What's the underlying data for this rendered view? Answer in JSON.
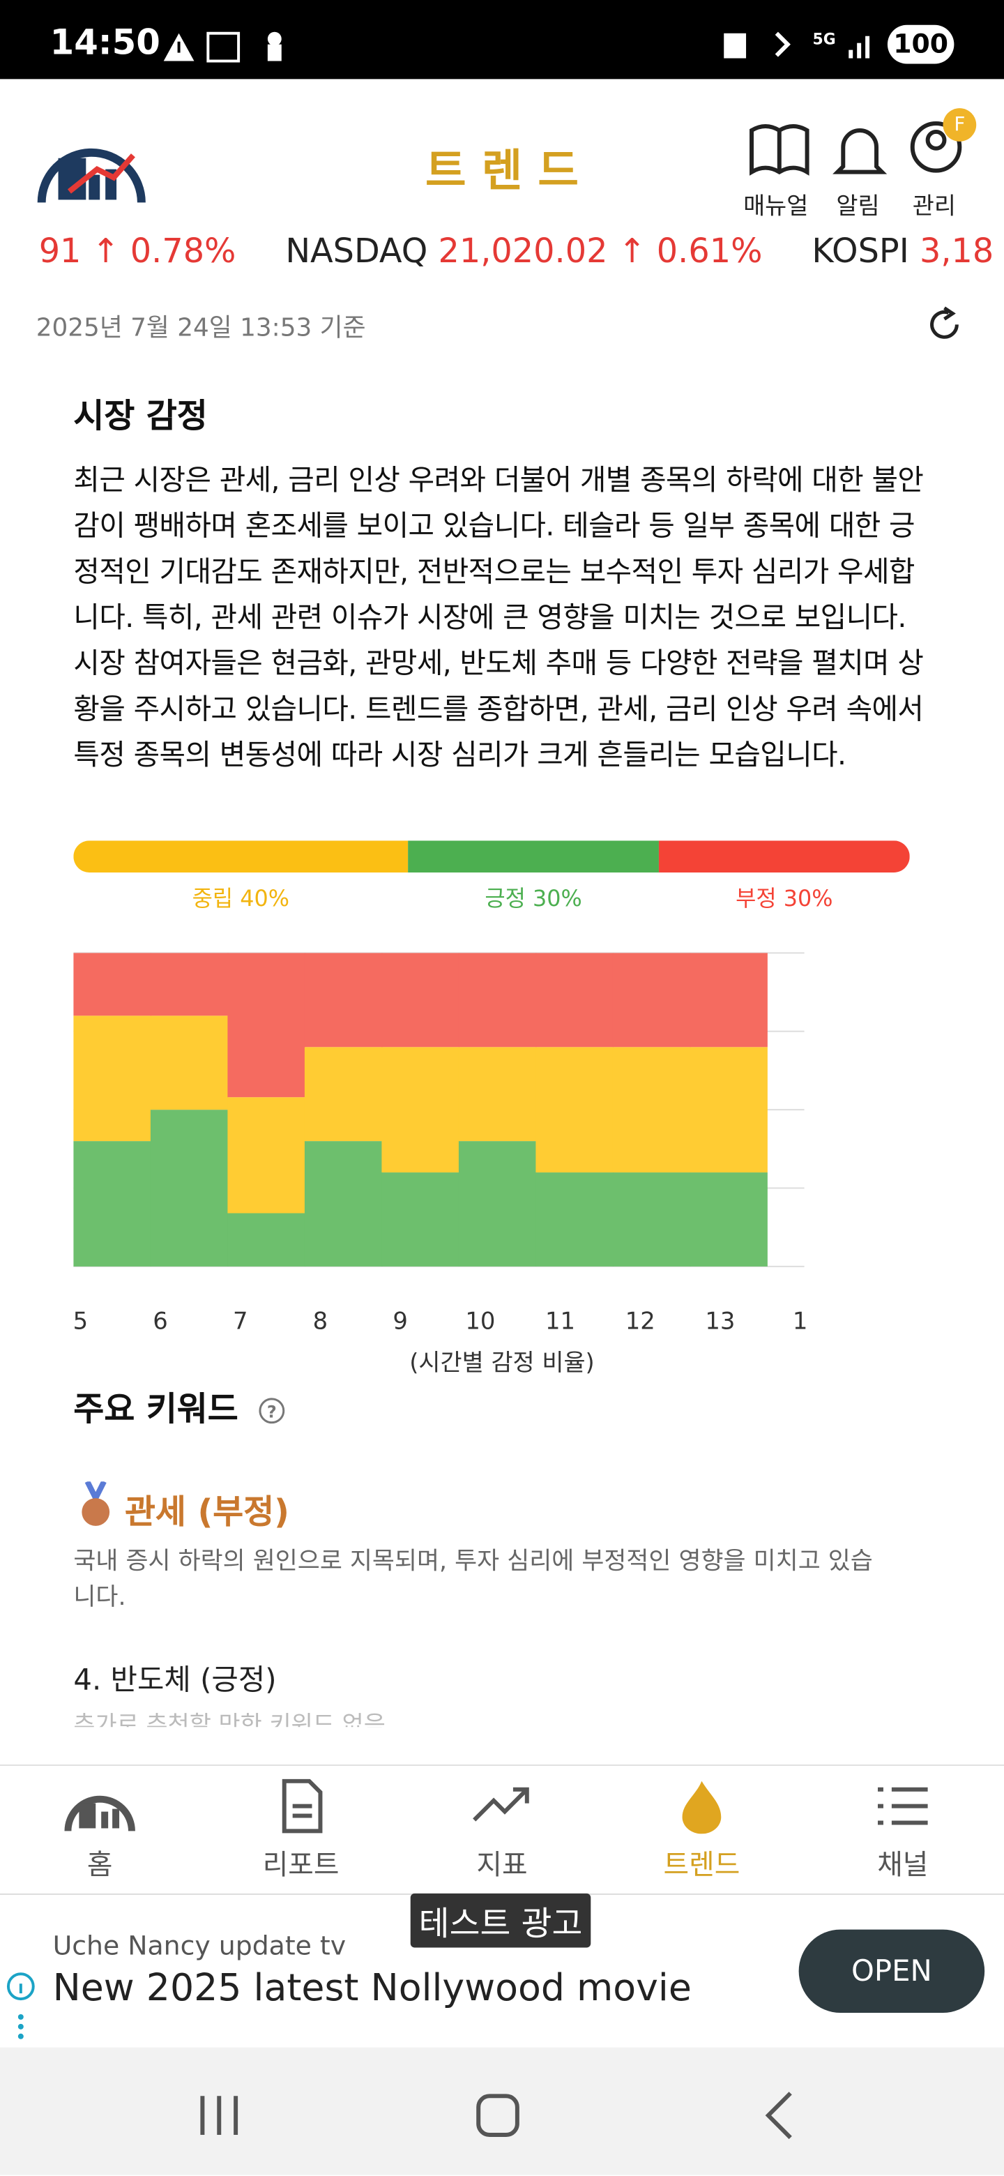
{
  "status_bar": {
    "time": "14:50",
    "battery": "100"
  },
  "header": {
    "title": "트 렌 드",
    "actions": [
      "매뉴얼",
      "알림",
      "관리"
    ],
    "avatar": "F"
  },
  "ticker": [
    "91 ↑ 0.78%",
    "NASDAQ",
    "21,020.02 ↑ 0.61%",
    "KOSPI",
    "3,18"
  ],
  "timestamp": "2025년 7월 24일 13:53 기준",
  "sentiment": {
    "title": "시장 감정",
    "summary": "최근 시장은 관세, 금리 인상 우려와 더불어 개별 종목의 하락에 대한 불안감이 팽배하며 혼조세를 보이고 있습니다. 테슬라 등 일부 종목에 대한 긍정적인 기대감도 존재하지만, 전반적으로는 보수적인 투자 심리가 우세합니다. 특히, 관세 관련 이슈가 시장에 큰 영향을 미치는 것으로 보입니다. 시장 참여자들은 현금화, 관망세, 반도체 추매 등 다양한 전략을 펼치며 상황을 주시하고 있습니다. 트렌드를 종합하면, 관세, 금리 인상 우려 속에서 특정 종목의 변동성에 따라 시장 심리가 크게 흔들리는 모습입니다.",
    "values": [
      40,
      30,
      30
    ],
    "value_labels": [
      "중립 40%",
      "긍정 30%",
      "부정 30%"
    ],
    "colors": [
      "#fbbf14",
      "#4caf50",
      "#f44336"
    ],
    "label_colors": [
      "#f2b40f",
      "#4caf50",
      "#f44336"
    ]
  },
  "chart_data": {
    "type": "stacked-bar",
    "x_label": "(시간별 감정 비율)",
    "categories": [
      "5",
      "6",
      "7",
      "8",
      "9",
      "10",
      "11",
      "12",
      "13",
      "1"
    ],
    "series": [
      {
        "color": "#6dbf6d",
        "values": [
          40,
          50,
          17,
          40,
          30,
          40,
          30,
          30,
          30,
          null
        ]
      },
      {
        "color": "#ffcc33",
        "values": [
          40,
          30,
          37,
          30,
          40,
          30,
          40,
          40,
          40,
          null
        ]
      },
      {
        "color": "#f56b60",
        "values": [
          20,
          20,
          46,
          30,
          30,
          30,
          30,
          30,
          30,
          null
        ]
      }
    ],
    "ylim": [
      0,
      100
    ],
    "yticks": [
      0,
      25,
      50,
      75,
      100
    ],
    "grid": true
  },
  "keywords": {
    "title": "주요 키워드",
    "items": [
      {
        "title": "관세 (부정)",
        "description": "국내 증시 하락의 원인으로 지목되며, 투자 심리에 부정적인 영향을 미치고 있습니다."
      },
      {
        "title": "4. 반도체 (긍정)",
        "description": "추가로 추천할 만한 키워드 없음"
      }
    ]
  },
  "nav": [
    "홈",
    "리포트",
    "지표",
    "트렌드",
    "채널"
  ],
  "ad": {
    "badge": "테스트 광고",
    "source": "Uche Nancy update tv",
    "headline": "New 2025 latest Nollywood movie",
    "button": "OPEN"
  }
}
